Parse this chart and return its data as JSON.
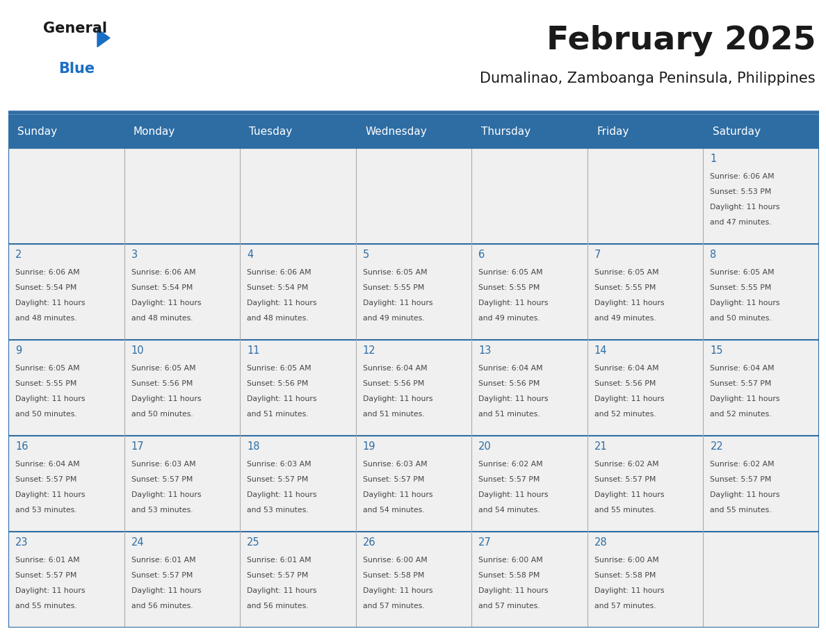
{
  "title": "February 2025",
  "subtitle": "Dumalinao, Zamboanga Peninsula, Philippines",
  "header_bg": "#2E6DA4",
  "header_text": "#FFFFFF",
  "cell_bg": "#F0F0F0",
  "day_headers": [
    "Sunday",
    "Monday",
    "Tuesday",
    "Wednesday",
    "Thursday",
    "Friday",
    "Saturday"
  ],
  "days": [
    {
      "day": 1,
      "col": 6,
      "row": 0,
      "sunrise": "6:06 AM",
      "sunset": "5:53 PM",
      "daylight": "11 hours and 47 minutes."
    },
    {
      "day": 2,
      "col": 0,
      "row": 1,
      "sunrise": "6:06 AM",
      "sunset": "5:54 PM",
      "daylight": "11 hours and 48 minutes."
    },
    {
      "day": 3,
      "col": 1,
      "row": 1,
      "sunrise": "6:06 AM",
      "sunset": "5:54 PM",
      "daylight": "11 hours and 48 minutes."
    },
    {
      "day": 4,
      "col": 2,
      "row": 1,
      "sunrise": "6:06 AM",
      "sunset": "5:54 PM",
      "daylight": "11 hours and 48 minutes."
    },
    {
      "day": 5,
      "col": 3,
      "row": 1,
      "sunrise": "6:05 AM",
      "sunset": "5:55 PM",
      "daylight": "11 hours and 49 minutes."
    },
    {
      "day": 6,
      "col": 4,
      "row": 1,
      "sunrise": "6:05 AM",
      "sunset": "5:55 PM",
      "daylight": "11 hours and 49 minutes."
    },
    {
      "day": 7,
      "col": 5,
      "row": 1,
      "sunrise": "6:05 AM",
      "sunset": "5:55 PM",
      "daylight": "11 hours and 49 minutes."
    },
    {
      "day": 8,
      "col": 6,
      "row": 1,
      "sunrise": "6:05 AM",
      "sunset": "5:55 PM",
      "daylight": "11 hours and 50 minutes."
    },
    {
      "day": 9,
      "col": 0,
      "row": 2,
      "sunrise": "6:05 AM",
      "sunset": "5:55 PM",
      "daylight": "11 hours and 50 minutes."
    },
    {
      "day": 10,
      "col": 1,
      "row": 2,
      "sunrise": "6:05 AM",
      "sunset": "5:56 PM",
      "daylight": "11 hours and 50 minutes."
    },
    {
      "day": 11,
      "col": 2,
      "row": 2,
      "sunrise": "6:05 AM",
      "sunset": "5:56 PM",
      "daylight": "11 hours and 51 minutes."
    },
    {
      "day": 12,
      "col": 3,
      "row": 2,
      "sunrise": "6:04 AM",
      "sunset": "5:56 PM",
      "daylight": "11 hours and 51 minutes."
    },
    {
      "day": 13,
      "col": 4,
      "row": 2,
      "sunrise": "6:04 AM",
      "sunset": "5:56 PM",
      "daylight": "11 hours and 51 minutes."
    },
    {
      "day": 14,
      "col": 5,
      "row": 2,
      "sunrise": "6:04 AM",
      "sunset": "5:56 PM",
      "daylight": "11 hours and 52 minutes."
    },
    {
      "day": 15,
      "col": 6,
      "row": 2,
      "sunrise": "6:04 AM",
      "sunset": "5:57 PM",
      "daylight": "11 hours and 52 minutes."
    },
    {
      "day": 16,
      "col": 0,
      "row": 3,
      "sunrise": "6:04 AM",
      "sunset": "5:57 PM",
      "daylight": "11 hours and 53 minutes."
    },
    {
      "day": 17,
      "col": 1,
      "row": 3,
      "sunrise": "6:03 AM",
      "sunset": "5:57 PM",
      "daylight": "11 hours and 53 minutes."
    },
    {
      "day": 18,
      "col": 2,
      "row": 3,
      "sunrise": "6:03 AM",
      "sunset": "5:57 PM",
      "daylight": "11 hours and 53 minutes."
    },
    {
      "day": 19,
      "col": 3,
      "row": 3,
      "sunrise": "6:03 AM",
      "sunset": "5:57 PM",
      "daylight": "11 hours and 54 minutes."
    },
    {
      "day": 20,
      "col": 4,
      "row": 3,
      "sunrise": "6:02 AM",
      "sunset": "5:57 PM",
      "daylight": "11 hours and 54 minutes."
    },
    {
      "day": 21,
      "col": 5,
      "row": 3,
      "sunrise": "6:02 AM",
      "sunset": "5:57 PM",
      "daylight": "11 hours and 55 minutes."
    },
    {
      "day": 22,
      "col": 6,
      "row": 3,
      "sunrise": "6:02 AM",
      "sunset": "5:57 PM",
      "daylight": "11 hours and 55 minutes."
    },
    {
      "day": 23,
      "col": 0,
      "row": 4,
      "sunrise": "6:01 AM",
      "sunset": "5:57 PM",
      "daylight": "11 hours and 55 minutes."
    },
    {
      "day": 24,
      "col": 1,
      "row": 4,
      "sunrise": "6:01 AM",
      "sunset": "5:57 PM",
      "daylight": "11 hours and 56 minutes."
    },
    {
      "day": 25,
      "col": 2,
      "row": 4,
      "sunrise": "6:01 AM",
      "sunset": "5:57 PM",
      "daylight": "11 hours and 56 minutes."
    },
    {
      "day": 26,
      "col": 3,
      "row": 4,
      "sunrise": "6:00 AM",
      "sunset": "5:58 PM",
      "daylight": "11 hours and 57 minutes."
    },
    {
      "day": 27,
      "col": 4,
      "row": 4,
      "sunrise": "6:00 AM",
      "sunset": "5:58 PM",
      "daylight": "11 hours and 57 minutes."
    },
    {
      "day": 28,
      "col": 5,
      "row": 4,
      "sunrise": "6:00 AM",
      "sunset": "5:58 PM",
      "daylight": "11 hours and 57 minutes."
    }
  ],
  "num_rows": 5,
  "num_cols": 7,
  "border_color": "#AAAAAA",
  "line_color": "#2E6DA4",
  "day_num_color": "#2E6DA4",
  "cell_text_color": "#444444",
  "logo_general_color": "#1A1A1A",
  "logo_blue_color": "#1A6FC4",
  "title_color": "#1A1A1A",
  "subtitle_color": "#1A1A1A"
}
